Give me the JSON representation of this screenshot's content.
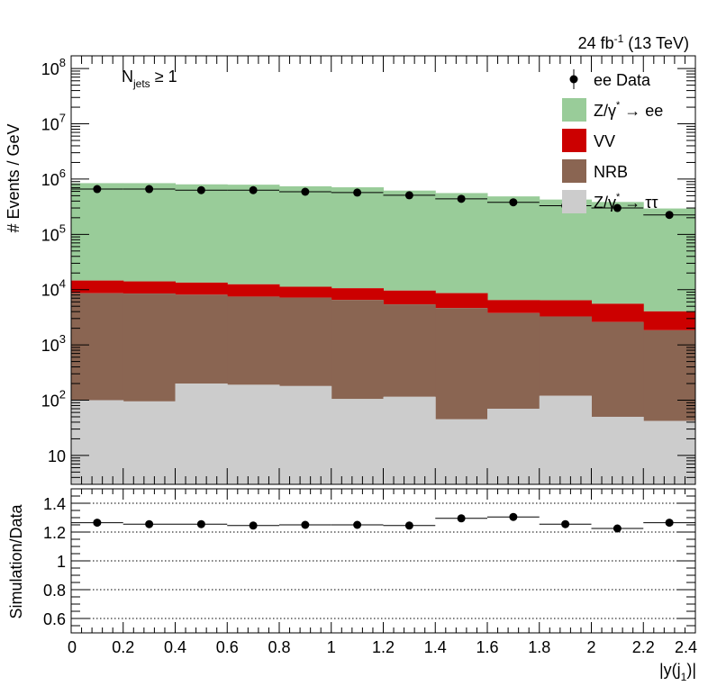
{
  "chart_data": [
    {
      "type": "area",
      "panel": "main",
      "title": "",
      "header_right": "24 fb-1 (13 TeV)",
      "header_right_parts": {
        "prefix": "24 fb",
        "sup": "-1",
        "suffix": " (13 TeV)"
      },
      "annotation": {
        "base": "N",
        "sub": "jets",
        "rest": " ≥ 1"
      },
      "ylabel": "# Events / GeV",
      "xlabel": "|y(j1)|",
      "xlabel_parts": {
        "prefix": "|y(j",
        "sub": "1",
        "suffix": ")|"
      },
      "yscale": "log",
      "ylim": [
        3,
        170000000
      ],
      "xlim": [
        0,
        2.4
      ],
      "bin_edges": [
        0,
        0.2,
        0.4,
        0.6,
        0.8,
        1.0,
        1.2,
        1.4,
        1.6,
        1.8,
        2.0,
        2.2,
        2.4
      ],
      "stack_order_bottom_to_top": [
        "Z/γ* → ττ",
        "NRB",
        "VV",
        "Z/γ* → ee"
      ],
      "series": [
        {
          "name": "Z/γ* → ττ",
          "color": "#cccccc",
          "values": [
            100,
            95,
            200,
            190,
            180,
            105,
            115,
            45,
            70,
            120,
            50,
            42
          ]
        },
        {
          "name": "NRB",
          "color": "#8a6552",
          "values": [
            8500,
            8400,
            7900,
            7300,
            7000,
            6400,
            5300,
            4600,
            3700,
            3150,
            2550,
            1800
          ]
        },
        {
          "name": "VV",
          "color": "#cc0000",
          "values": [
            6000,
            5600,
            5300,
            5000,
            4100,
            4100,
            4200,
            4000,
            2700,
            3150,
            2950,
            2200
          ]
        },
        {
          "name": "Z/γ* → ee",
          "color": "#99cc99",
          "values": [
            830000,
            830000,
            790000,
            780000,
            730000,
            700000,
            610000,
            550000,
            480000,
            420000,
            380000,
            290000
          ]
        }
      ],
      "data_points": {
        "name": "ee Data",
        "x": [
          0.1,
          0.3,
          0.5,
          0.7,
          0.9,
          1.1,
          1.3,
          1.5,
          1.7,
          1.9,
          2.1,
          2.3
        ],
        "y": [
          660000,
          660000,
          630000,
          630000,
          590000,
          570000,
          510000,
          440000,
          380000,
          330000,
          300000,
          225000
        ]
      },
      "legend": [
        {
          "label": "ee Data",
          "kind": "marker"
        },
        {
          "label": "Z/γ* → ee",
          "kind": "box",
          "color": "#99cc99"
        },
        {
          "label": "VV",
          "kind": "box",
          "color": "#cc0000"
        },
        {
          "label": "NRB",
          "kind": "box",
          "color": "#8a6552"
        },
        {
          "label": "Z/γ* → ττ",
          "kind": "box",
          "color": "#cccccc"
        }
      ],
      "legend_placement": "top-right",
      "yticks": [
        {
          "value": 10,
          "label_base": "10",
          "label_exp": ""
        },
        {
          "value": 100,
          "label_base": "10",
          "label_exp": "2"
        },
        {
          "value": 1000,
          "label_base": "10",
          "label_exp": "3"
        },
        {
          "value": 10000,
          "label_base": "10",
          "label_exp": "4"
        },
        {
          "value": 100000,
          "label_base": "10",
          "label_exp": "5"
        },
        {
          "value": 1000000,
          "label_base": "10",
          "label_exp": "6"
        },
        {
          "value": 10000000,
          "label_base": "10",
          "label_exp": "7"
        },
        {
          "value": 100000000,
          "label_base": "10",
          "label_exp": "8"
        }
      ]
    },
    {
      "type": "scatter",
      "panel": "ratio",
      "ylabel": "Simulation/Data",
      "xlabel": "|y(j1)|",
      "xlim": [
        0,
        2.4
      ],
      "ylim": [
        0.5,
        1.5
      ],
      "grid": true,
      "grid_y": [
        0.6,
        0.8,
        1.0,
        1.2,
        1.4
      ],
      "yticks": [
        "0.6",
        "0.8",
        "1",
        "1.2",
        "1.4"
      ],
      "xticks": [
        "0",
        "0.2",
        "0.4",
        "0.6",
        "0.8",
        "1",
        "1.2",
        "1.4",
        "1.6",
        "1.8",
        "2",
        "2.2",
        "2.4"
      ],
      "x": [
        0.1,
        0.3,
        0.5,
        0.7,
        0.9,
        1.1,
        1.3,
        1.5,
        1.7,
        1.9,
        2.1,
        2.3
      ],
      "y": [
        1.265,
        1.255,
        1.255,
        1.245,
        1.25,
        1.25,
        1.245,
        1.295,
        1.305,
        1.255,
        1.225,
        1.265
      ]
    }
  ]
}
